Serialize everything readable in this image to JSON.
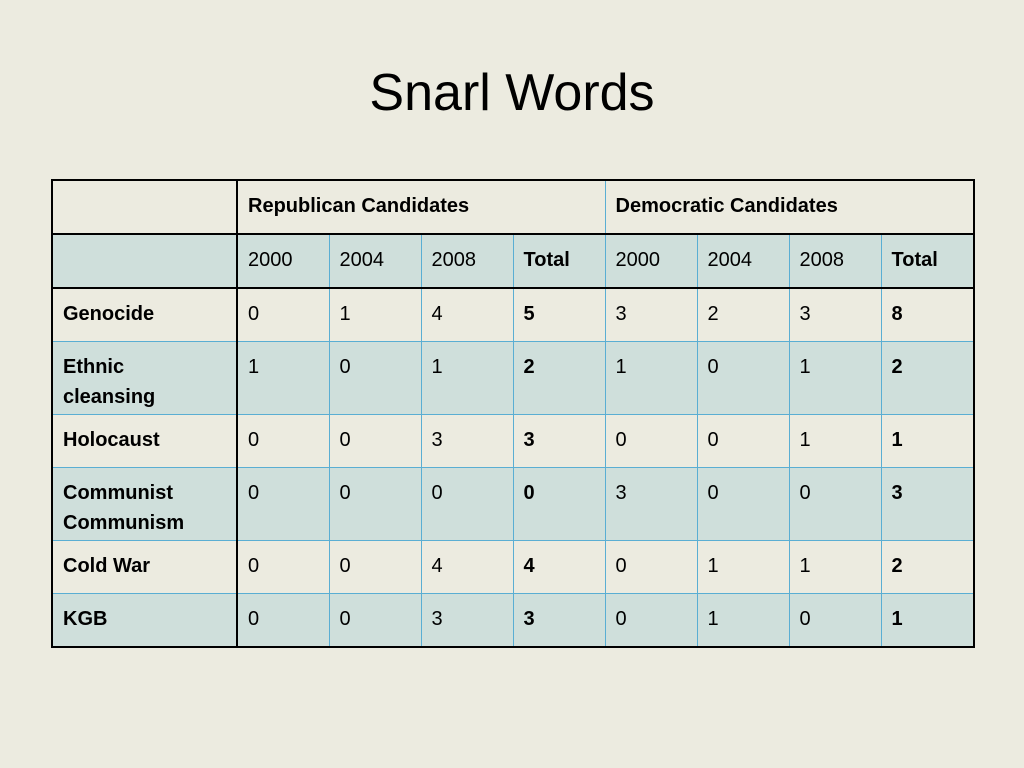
{
  "slide": {
    "title": "Snarl Words"
  },
  "table": {
    "groups": [
      "Republican Candidates",
      "Democratic Candidates"
    ],
    "subheaders": [
      "2000",
      "2004",
      "2008",
      "Total",
      "2000",
      "2004",
      "2008",
      "Total"
    ],
    "rows": [
      {
        "term": [
          "Genocide"
        ],
        "values": [
          "0",
          "1",
          "4",
          "5",
          "3",
          "2",
          "3",
          "8"
        ]
      },
      {
        "term": [
          "Ethnic",
          "cleansing"
        ],
        "values": [
          "1",
          "0",
          "1",
          "2",
          "1",
          "0",
          "1",
          "2"
        ]
      },
      {
        "term": [
          "Holocaust"
        ],
        "values": [
          "0",
          "0",
          "3",
          "3",
          "0",
          "0",
          "1",
          "1"
        ]
      },
      {
        "term": [
          "Communist",
          "Communism"
        ],
        "values": [
          "0",
          "0",
          "0",
          "0",
          "3",
          "0",
          "0",
          "3"
        ]
      },
      {
        "term": [
          "Cold War"
        ],
        "values": [
          "0",
          "0",
          "4",
          "4",
          "0",
          "1",
          "1",
          "2"
        ]
      },
      {
        "term": [
          "KGB"
        ],
        "values": [
          "0",
          "0",
          "3",
          "3",
          "0",
          "1",
          "0",
          "1"
        ]
      }
    ]
  }
}
